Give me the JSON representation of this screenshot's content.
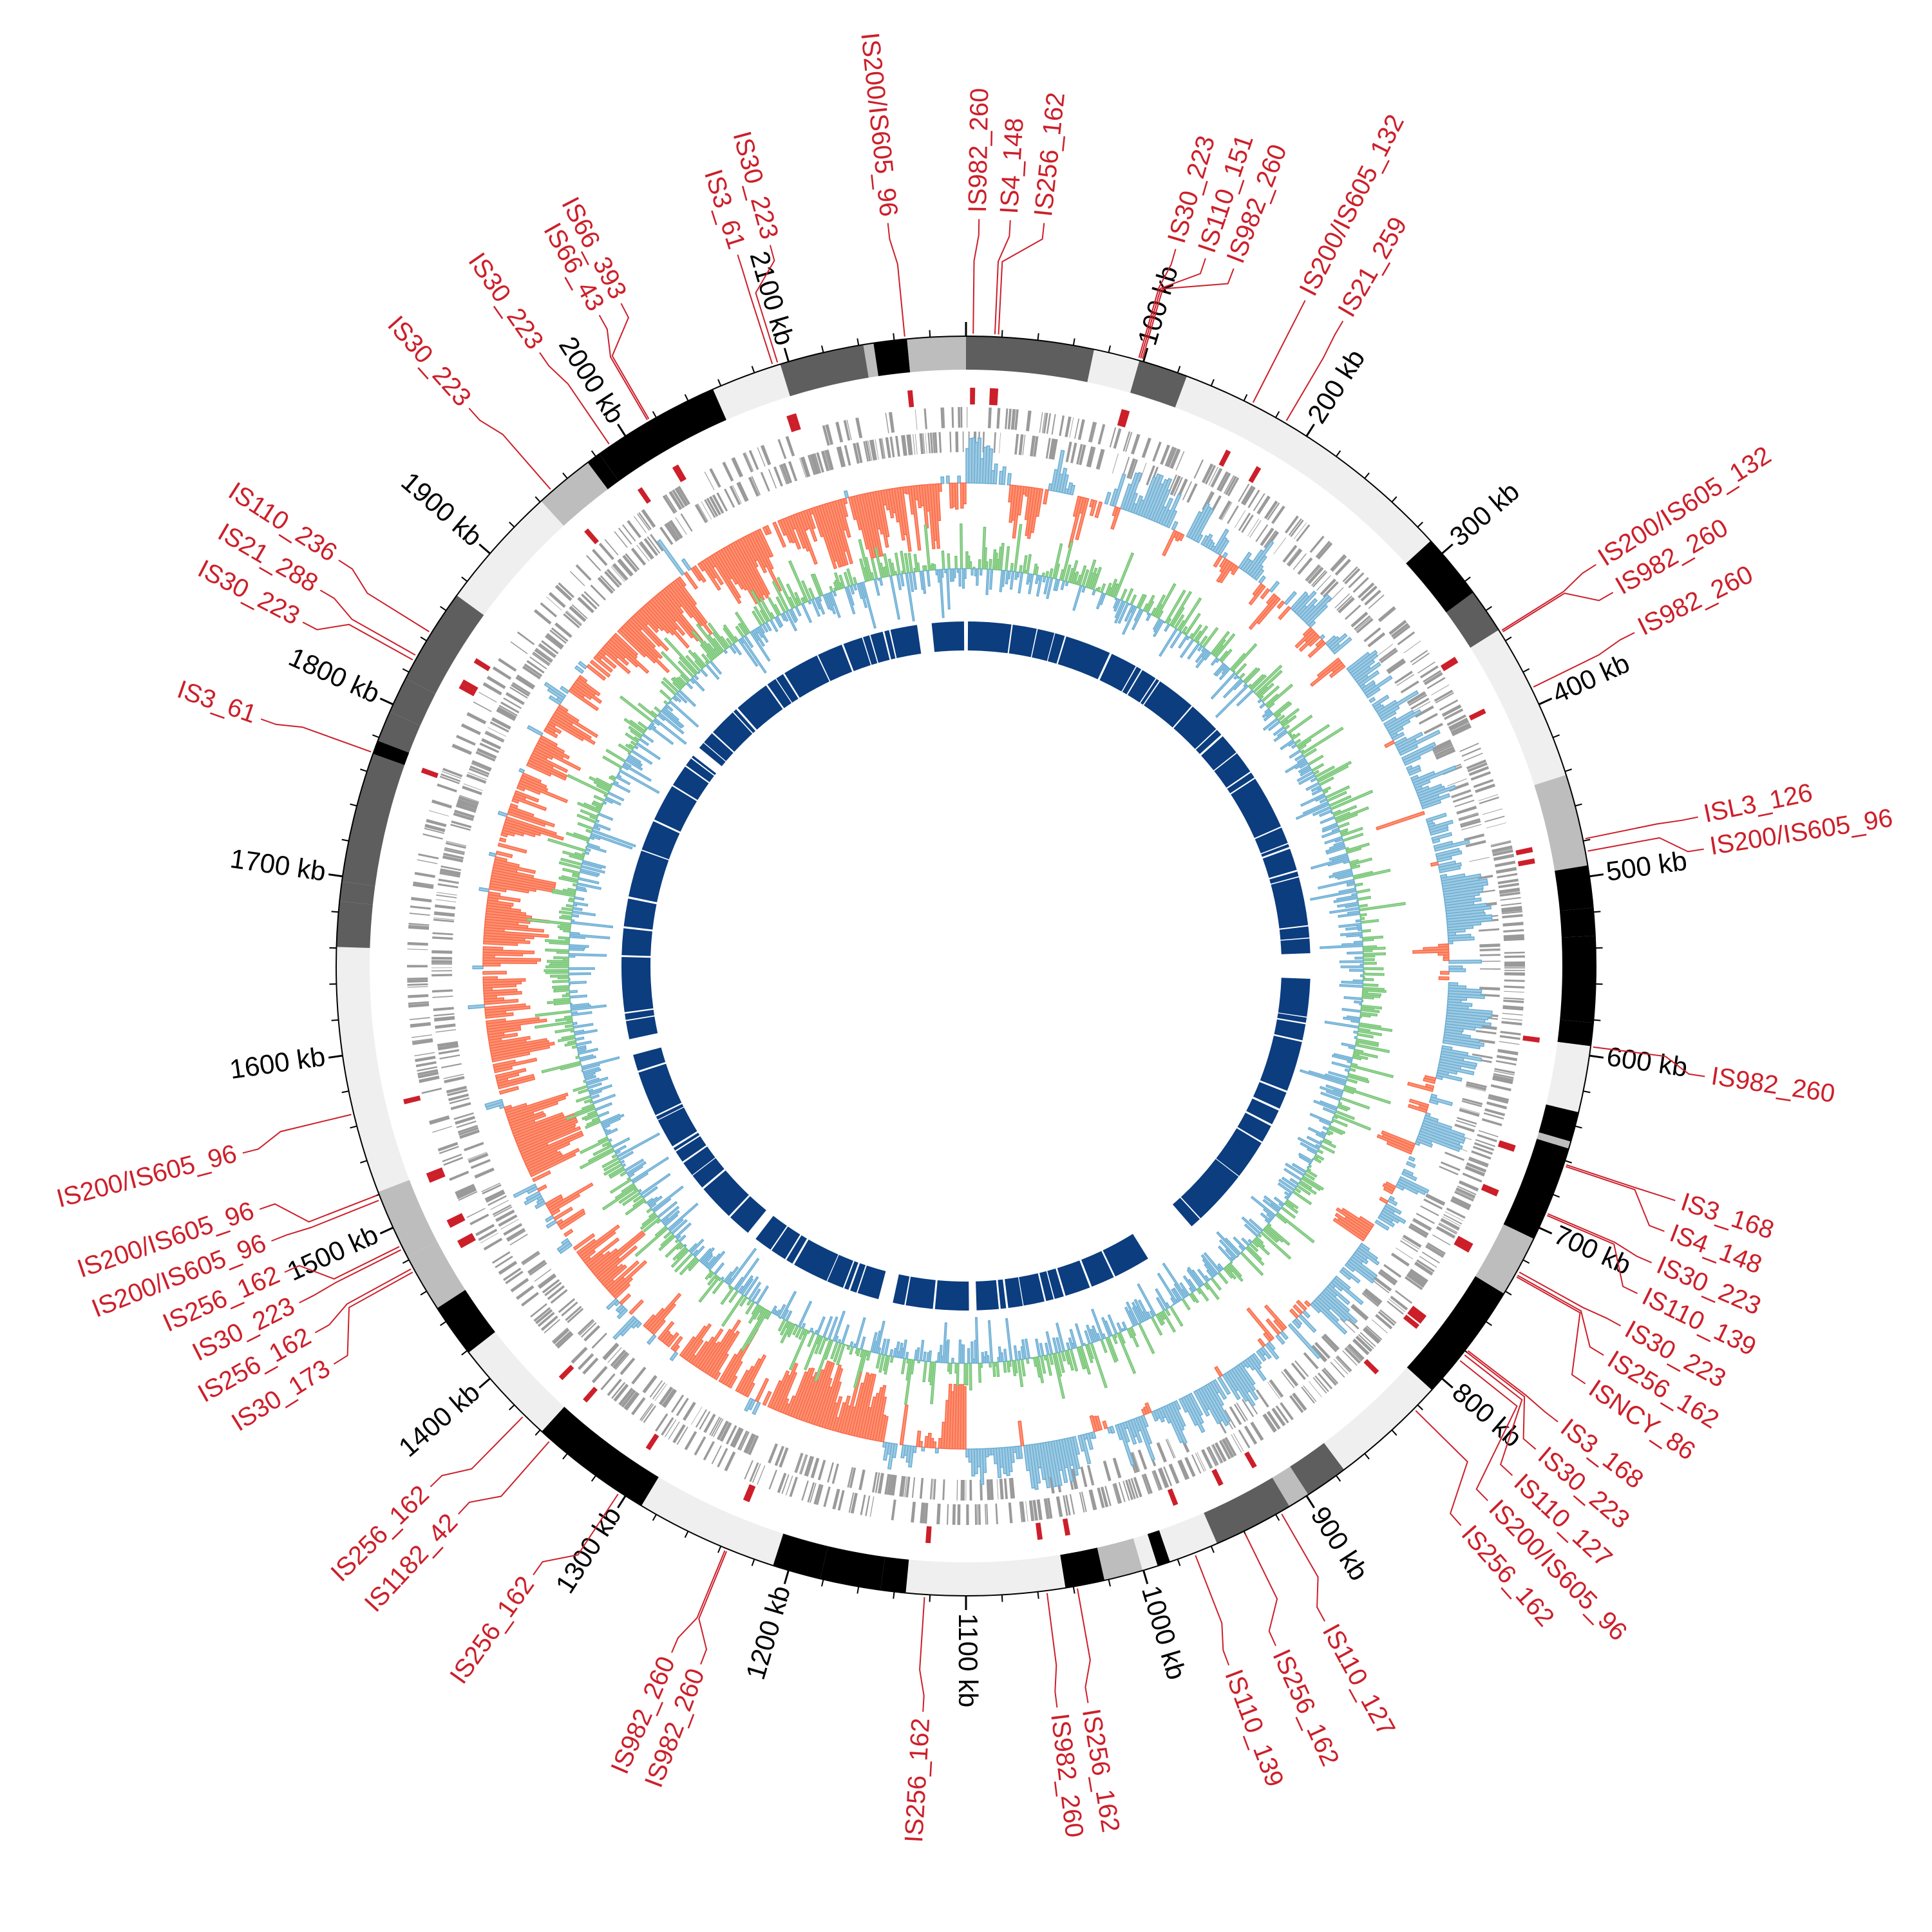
{
  "chart_data": {
    "type": "circos",
    "title": "",
    "genome_length_kb": 2200,
    "tick_unit": "kb",
    "major_tick_interval_kb": 100,
    "tick_labels": [
      "100 kb",
      "200 kb",
      "300 kb",
      "400 kb",
      "500 kb",
      "600 kb",
      "700 kb",
      "800 kb",
      "900 kb",
      "1000 kb",
      "1100 kb",
      "1200 kb",
      "1300 kb",
      "1400 kb",
      "1500 kb",
      "1600 kb",
      "1700 kb",
      "1800 kb",
      "1900 kb",
      "2000 kb",
      "2100 kb"
    ],
    "tracks": [
      "ideogram bands",
      "IS element markers",
      "genes (forward strand)",
      "genes (reverse strand)",
      "GC skew",
      "GC content",
      "inner blocks"
    ],
    "is_elements": [
      {
        "label": "IS200/IS605_96",
        "position_kb": 2166
      },
      {
        "label": "IS982_260",
        "position_kb": 4
      },
      {
        "label": "IS4_148",
        "position_kb": 16
      },
      {
        "label": "IS256_162",
        "position_kb": 18
      },
      {
        "label": "IS30_223",
        "position_kb": 97
      },
      {
        "label": "IS110_151",
        "position_kb": 98
      },
      {
        "label": "IS982_260",
        "position_kb": 99
      },
      {
        "label": "IS200/IS605_132",
        "position_kb": 165
      },
      {
        "label": "IS21_259",
        "position_kb": 186
      },
      {
        "label": "IS200/IS605_132",
        "position_kb": 354
      },
      {
        "label": "IS982_260",
        "position_kb": 355
      },
      {
        "label": "IS982_260",
        "position_kb": 390
      },
      {
        "label": "ISL3_126",
        "position_kb": 479
      },
      {
        "label": "IS200/IS605_96",
        "position_kb": 486
      },
      {
        "label": "IS982_260",
        "position_kb": 595
      },
      {
        "label": "IS3_168",
        "position_kb": 662
      },
      {
        "label": "IS4_148",
        "position_kb": 663
      },
      {
        "label": "IS30_223",
        "position_kb": 691
      },
      {
        "label": "IS110_139",
        "position_kb": 692
      },
      {
        "label": "IS30_223",
        "position_kb": 727
      },
      {
        "label": "IS256_162",
        "position_kb": 729
      },
      {
        "label": "ISNCY_86",
        "position_kb": 730
      },
      {
        "label": "IS3_168",
        "position_kb": 779
      },
      {
        "label": "IS30_223",
        "position_kb": 780
      },
      {
        "label": "IS110_127",
        "position_kb": 782
      },
      {
        "label": "IS200/IS605_96",
        "position_kb": 786
      },
      {
        "label": "IS256_162",
        "position_kb": 823
      },
      {
        "label": "IS110_127",
        "position_kb": 917
      },
      {
        "label": "IS256_162",
        "position_kb": 940
      },
      {
        "label": "IS110_139",
        "position_kb": 970
      },
      {
        "label": "IS256_162",
        "position_kb": 1038
      },
      {
        "label": "IS982_260",
        "position_kb": 1055
      },
      {
        "label": "IS256_162",
        "position_kb": 1123
      },
      {
        "label": "IS982_260",
        "position_kb": 1236
      },
      {
        "label": "IS982_260",
        "position_kb": 1237
      },
      {
        "label": "IS256_162",
        "position_kb": 1304
      },
      {
        "label": "IS1182_42",
        "position_kb": 1352
      },
      {
        "label": "IS256_162",
        "position_kb": 1372
      },
      {
        "label": "IS30_173",
        "position_kb": 1473
      },
      {
        "label": "IS256_162",
        "position_kb": 1475
      },
      {
        "label": "IS30_223",
        "position_kb": 1487
      },
      {
        "label": "IS256_162",
        "position_kb": 1489
      },
      {
        "label": "IS200/IS605_96",
        "position_kb": 1517
      },
      {
        "label": "IS200/IS605_96",
        "position_kb": 1520
      },
      {
        "label": "IS200/IS605_96",
        "position_kb": 1567
      },
      {
        "label": "IS3_61",
        "position_kb": 1771
      },
      {
        "label": "IS30_223",
        "position_kb": 1827
      },
      {
        "label": "IS21_288",
        "position_kb": 1830
      },
      {
        "label": "IS110_236",
        "position_kb": 1845
      },
      {
        "label": "IS30_223",
        "position_kb": 1949
      },
      {
        "label": "IS30_223",
        "position_kb": 1990
      },
      {
        "label": "IS66_43",
        "position_kb": 2015
      },
      {
        "label": "IS66_393",
        "position_kb": 2016
      },
      {
        "label": "IS3_61",
        "position_kb": 2091
      },
      {
        "label": "IS30_223",
        "position_kb": 2094
      }
    ],
    "colors": {
      "is_label": "#cc1f2a",
      "gene": "#9a9a9a",
      "skew_positive": "#9ecae1",
      "skew_negative": "#fc9272",
      "gc_high": "#a1d99b",
      "gc_low": "#9ecae1",
      "inner_block": "#0b3d7f",
      "band_shades": [
        "#000000",
        "#5e5e5e",
        "#bdbdbd",
        "#efefef"
      ]
    }
  }
}
